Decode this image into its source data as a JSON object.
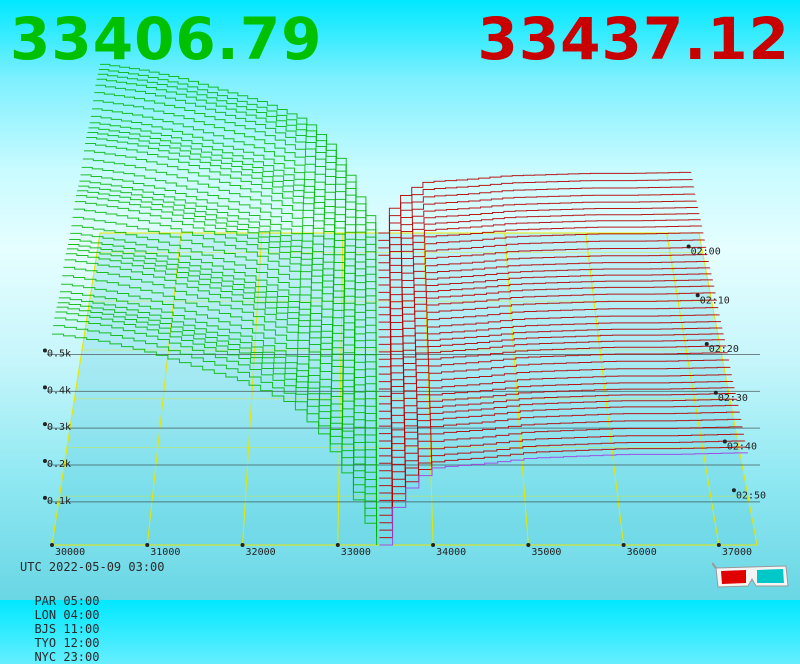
{
  "header": {
    "bid_price": "33406.79",
    "ask_price": "33437.12",
    "bid_color": "#00c000",
    "ask_color": "#c80000"
  },
  "footer": {
    "utc": "UTC 2022-05-09 03:00",
    "cities": [
      "PAR 05:00",
      "LON 04:00",
      "BJS 11:00",
      "TYO 12:00",
      "NYC 23:00"
    ]
  },
  "icons": {
    "glasses": "3d-glasses-icon"
  },
  "chart_data": {
    "type": "area",
    "title": "",
    "x_ticks": [
      "30000",
      "31000",
      "32000",
      "33000",
      "34000",
      "35000",
      "36000",
      "37000"
    ],
    "x_range": [
      30000,
      37400
    ],
    "depth_ticks": [
      "0.1k",
      "0.2k",
      "0.3k",
      "0.4k",
      "0.5k"
    ],
    "time_ticks": [
      "02:00",
      "02:10",
      "02:20",
      "02:30",
      "02:40",
      "02:50"
    ],
    "time_range": [
      "01:56",
      "03:00"
    ],
    "grid": true,
    "series": [
      {
        "name": "",
        "side": "bid",
        "color": "#00b400",
        "x": [
          30000,
          30500,
          31000,
          31500,
          32000,
          32500,
          32800,
          33000,
          33200,
          33406.79
        ],
        "cumulative_volume_k": [
          0.57,
          0.55,
          0.52,
          0.48,
          0.44,
          0.38,
          0.3,
          0.22,
          0.1,
          0.0
        ]
      },
      {
        "name": "",
        "side": "ask",
        "color": "#b40000",
        "x": [
          33437.12,
          33600,
          33800,
          34000,
          34500,
          35000,
          35500,
          36000,
          36500,
          37300
        ],
        "cumulative_volume_k": [
          0.0,
          0.12,
          0.18,
          0.21,
          0.22,
          0.235,
          0.24,
          0.245,
          0.245,
          0.25
        ]
      }
    ]
  }
}
